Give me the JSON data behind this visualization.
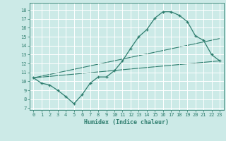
{
  "title": "",
  "xlabel": "Humidex (Indice chaleur)",
  "ylabel": "",
  "bg_color": "#cceae7",
  "line_color": "#2e7d6e",
  "grid_color": "#ffffff",
  "xlim": [
    -0.5,
    23.5
  ],
  "ylim": [
    6.8,
    18.8
  ],
  "xticks": [
    0,
    1,
    2,
    3,
    4,
    5,
    6,
    7,
    8,
    9,
    10,
    11,
    12,
    13,
    14,
    15,
    16,
    17,
    18,
    19,
    20,
    21,
    22,
    23
  ],
  "yticks": [
    7,
    8,
    9,
    10,
    11,
    12,
    13,
    14,
    15,
    16,
    17,
    18
  ],
  "line1_x": [
    0,
    1,
    2,
    3,
    4,
    5,
    6,
    7,
    8,
    9,
    10,
    11,
    12,
    13,
    14,
    15,
    16,
    17,
    18,
    19,
    20,
    21,
    22,
    23
  ],
  "line1_y": [
    10.4,
    9.8,
    9.6,
    9.0,
    8.3,
    7.5,
    8.5,
    9.8,
    10.5,
    10.5,
    11.2,
    12.3,
    13.7,
    15.0,
    15.8,
    17.1,
    17.8,
    17.8,
    17.4,
    16.7,
    15.1,
    14.6,
    13.0,
    12.3
  ],
  "line2_x": [
    0,
    23
  ],
  "line2_y": [
    10.4,
    12.3
  ],
  "line3_x": [
    0,
    23
  ],
  "line3_y": [
    10.4,
    14.8
  ]
}
